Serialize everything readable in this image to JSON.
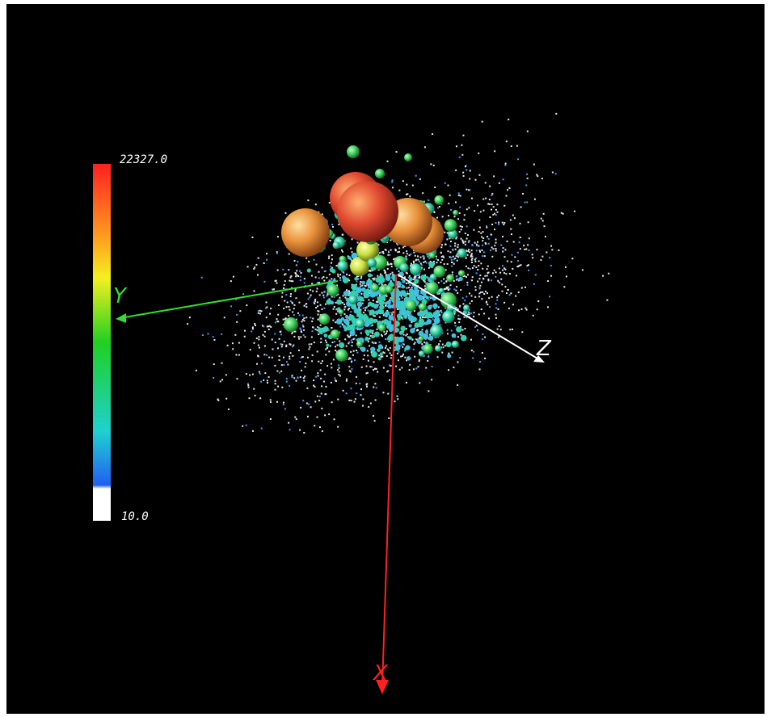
{
  "colorbar": {
    "max_label": "22327.0",
    "min_label": "10.0"
  },
  "axes": {
    "x_label": "X",
    "y_label": "Y",
    "z_label": "Z"
  }
}
